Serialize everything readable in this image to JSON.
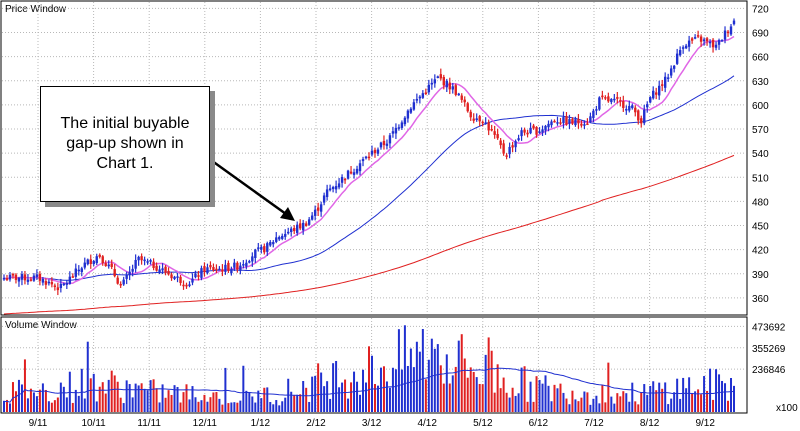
{
  "chart_data": [
    {
      "type": "candlestick",
      "panel_title": "Price Window",
      "x_labels": [
        "9/11",
        "10/11",
        "11/11",
        "12/11",
        "1/12",
        "2/12",
        "3/12",
        "4/12",
        "5/12",
        "6/12",
        "7/12",
        "8/12",
        "9/12"
      ],
      "y_ticks": [
        360,
        390,
        420,
        450,
        480,
        510,
        540,
        570,
        600,
        630,
        660,
        690,
        720
      ],
      "ylim": [
        340,
        728
      ],
      "grid": true,
      "y_axis_side": "right",
      "close_anchors": [
        [
          0,
          385
        ],
        [
          0.4,
          372
        ],
        [
          0.8,
          400
        ],
        [
          1.1,
          414
        ],
        [
          1.35,
          392
        ],
        [
          1.5,
          374
        ],
        [
          1.8,
          408
        ],
        [
          2.1,
          400
        ],
        [
          2.4,
          388
        ],
        [
          2.7,
          378
        ],
        [
          3.0,
          396
        ],
        [
          3.3,
          396
        ],
        [
          3.6,
          400
        ],
        [
          3.9,
          416
        ],
        [
          4.1,
          422
        ],
        [
          4.3,
          436
        ],
        [
          4.5,
          442
        ],
        [
          4.8,
          452
        ],
        [
          5.0,
          468
        ],
        [
          5.2,
          492
        ],
        [
          5.5,
          510
        ],
        [
          6.0,
          540
        ],
        [
          6.3,
          556
        ],
        [
          6.7,
          598
        ],
        [
          7.0,
          620
        ],
        [
          7.2,
          634
        ],
        [
          7.5,
          618
        ],
        [
          7.8,
          586
        ],
        [
          8.0,
          582
        ],
        [
          8.2,
          562
        ],
        [
          8.4,
          538
        ],
        [
          8.7,
          566
        ],
        [
          9.0,
          568
        ],
        [
          9.3,
          582
        ],
        [
          9.6,
          578
        ],
        [
          9.9,
          580
        ],
        [
          10.1,
          606
        ],
        [
          10.3,
          605
        ],
        [
          10.5,
          602
        ],
        [
          10.7,
          595
        ],
        [
          10.85,
          580
        ],
        [
          11.0,
          608
        ],
        [
          11.3,
          632
        ],
        [
          11.6,
          676
        ],
        [
          11.9,
          682
        ],
        [
          12.2,
          672
        ],
        [
          12.4,
          694
        ],
        [
          12.6,
          712
        ]
      ],
      "moving_averages": [
        {
          "color": "#e066e6",
          "period": 10
        },
        {
          "color": "#2030d0",
          "period": 50
        },
        {
          "color": "#e02020",
          "period": 200
        }
      ],
      "candle_colors": {
        "up": "#2030d0",
        "down": "#e02020"
      }
    },
    {
      "type": "bar",
      "panel_title": "Volume Window",
      "y_ticks": [
        236846,
        355269,
        473692
      ],
      "y_unit": "x100",
      "ylim": [
        0,
        520000
      ],
      "volume_levels": [
        [
          0,
          110000
        ],
        [
          1.0,
          160000
        ],
        [
          2.0,
          110000
        ],
        [
          3.0,
          90000
        ],
        [
          4.0,
          85000
        ],
        [
          4.6,
          120000
        ],
        [
          5.4,
          200000
        ],
        [
          6.3,
          250000
        ],
        [
          6.9,
          320000
        ],
        [
          7.4,
          300000
        ],
        [
          8.0,
          210000
        ],
        [
          8.6,
          160000
        ],
        [
          9.4,
          110000
        ],
        [
          10.2,
          110000
        ],
        [
          10.8,
          95000
        ],
        [
          11.2,
          120000
        ],
        [
          11.8,
          140000
        ],
        [
          12.5,
          150000
        ]
      ],
      "moving_average_color": "#2030d0",
      "bar_colors": {
        "up": "#2030d0",
        "down": "#e02020"
      }
    }
  ],
  "annotation": {
    "text": "The initial buyable gap-up shown in Chart 1."
  }
}
